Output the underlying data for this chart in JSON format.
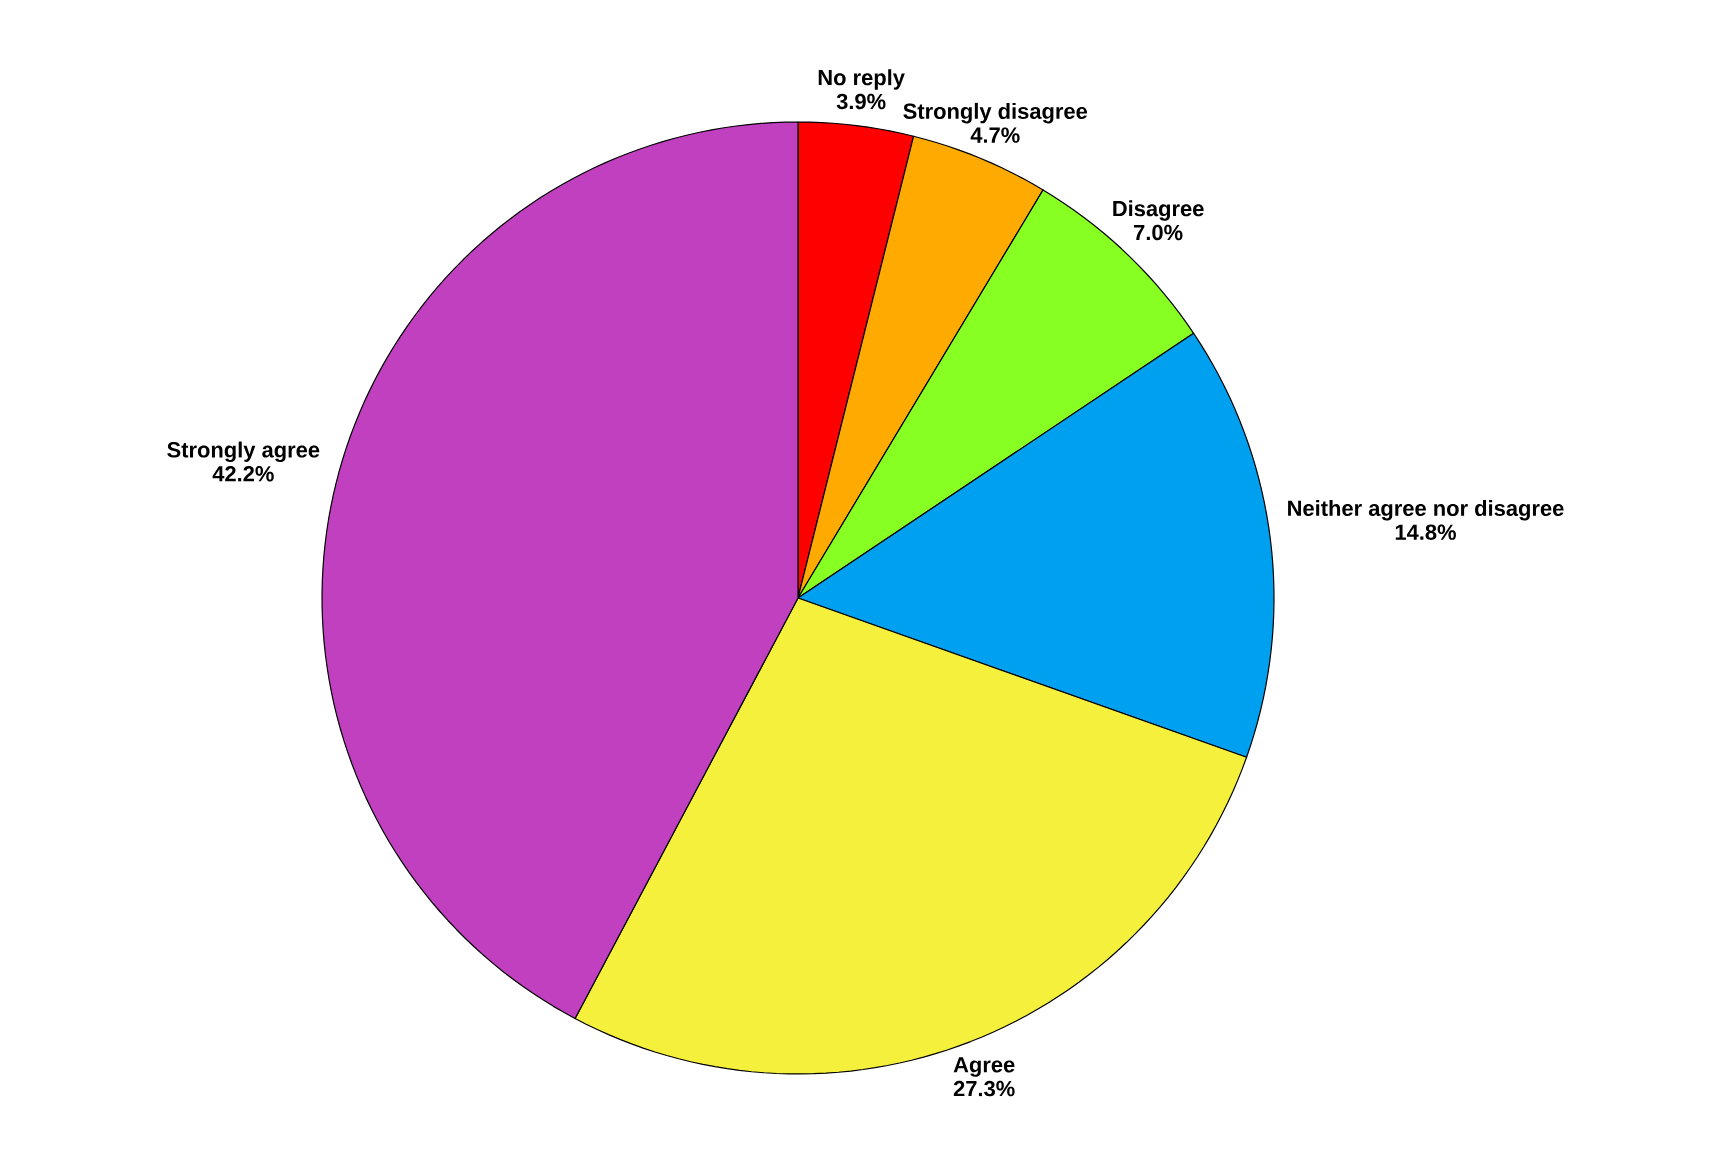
{
  "chart_data": {
    "type": "pie",
    "categories": [
      "No reply",
      "Strongly disagree",
      "Disagree",
      "Neither agree nor disagree",
      "Agree",
      "Strongly agree"
    ],
    "values": [
      3.9,
      4.7,
      7.0,
      14.8,
      27.3,
      42.2
    ],
    "value_labels": [
      "3.9%",
      "4.7%",
      "7.0%",
      "14.8%",
      "27.3%",
      "42.2%"
    ],
    "colors": [
      "#ff0000",
      "#ffaa00",
      "#88ff22",
      "#00a0f0",
      "#f5f03c",
      "#c040c0"
    ]
  }
}
